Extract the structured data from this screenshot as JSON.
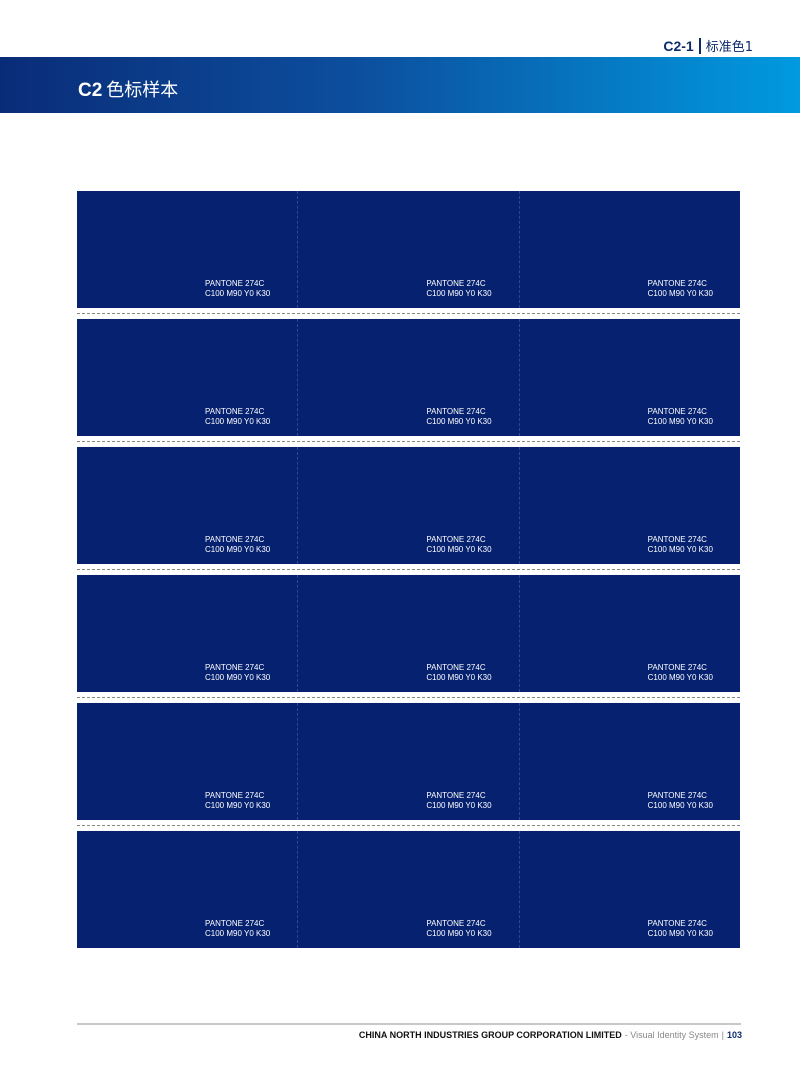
{
  "header": {
    "section_code": "C2-1",
    "section_name": "标准色1",
    "title_code": "C2",
    "title_text": "色标样本",
    "band_colors": [
      "#0a2c78",
      "#009ae0"
    ]
  },
  "swatch_color": "#062170",
  "swatches": [
    {
      "pantone": "PANTONE 274C",
      "cmyk": "C100 M90 Y0 K30"
    },
    {
      "pantone": "PANTONE 274C",
      "cmyk": "C100 M90 Y0 K30"
    },
    {
      "pantone": "PANTONE 274C",
      "cmyk": "C100 M90 Y0 K30"
    },
    {
      "pantone": "PANTONE 274C",
      "cmyk": "C100 M90 Y0 K30"
    },
    {
      "pantone": "PANTONE 274C",
      "cmyk": "C100 M90 Y0 K30"
    },
    {
      "pantone": "PANTONE 274C",
      "cmyk": "C100 M90 Y0 K30"
    },
    {
      "pantone": "PANTONE 274C",
      "cmyk": "C100 M90 Y0 K30"
    },
    {
      "pantone": "PANTONE 274C",
      "cmyk": "C100 M90 Y0 K30"
    },
    {
      "pantone": "PANTONE 274C",
      "cmyk": "C100 M90 Y0 K30"
    },
    {
      "pantone": "PANTONE 274C",
      "cmyk": "C100 M90 Y0 K30"
    },
    {
      "pantone": "PANTONE 274C",
      "cmyk": "C100 M90 Y0 K30"
    },
    {
      "pantone": "PANTONE 274C",
      "cmyk": "C100 M90 Y0 K30"
    },
    {
      "pantone": "PANTONE 274C",
      "cmyk": "C100 M90 Y0 K30"
    },
    {
      "pantone": "PANTONE 274C",
      "cmyk": "C100 M90 Y0 K30"
    },
    {
      "pantone": "PANTONE 274C",
      "cmyk": "C100 M90 Y0 K30"
    },
    {
      "pantone": "PANTONE 274C",
      "cmyk": "C100 M90 Y0 K30"
    },
    {
      "pantone": "PANTONE 274C",
      "cmyk": "C100 M90 Y0 K30"
    },
    {
      "pantone": "PANTONE 274C",
      "cmyk": "C100 M90 Y0 K30"
    }
  ],
  "footer": {
    "company": "CHINA NORTH INDUSTRIES GROUP CORPORATION LIMITED",
    "system": "- Visual Identity System",
    "separator": "|",
    "page": "103"
  }
}
